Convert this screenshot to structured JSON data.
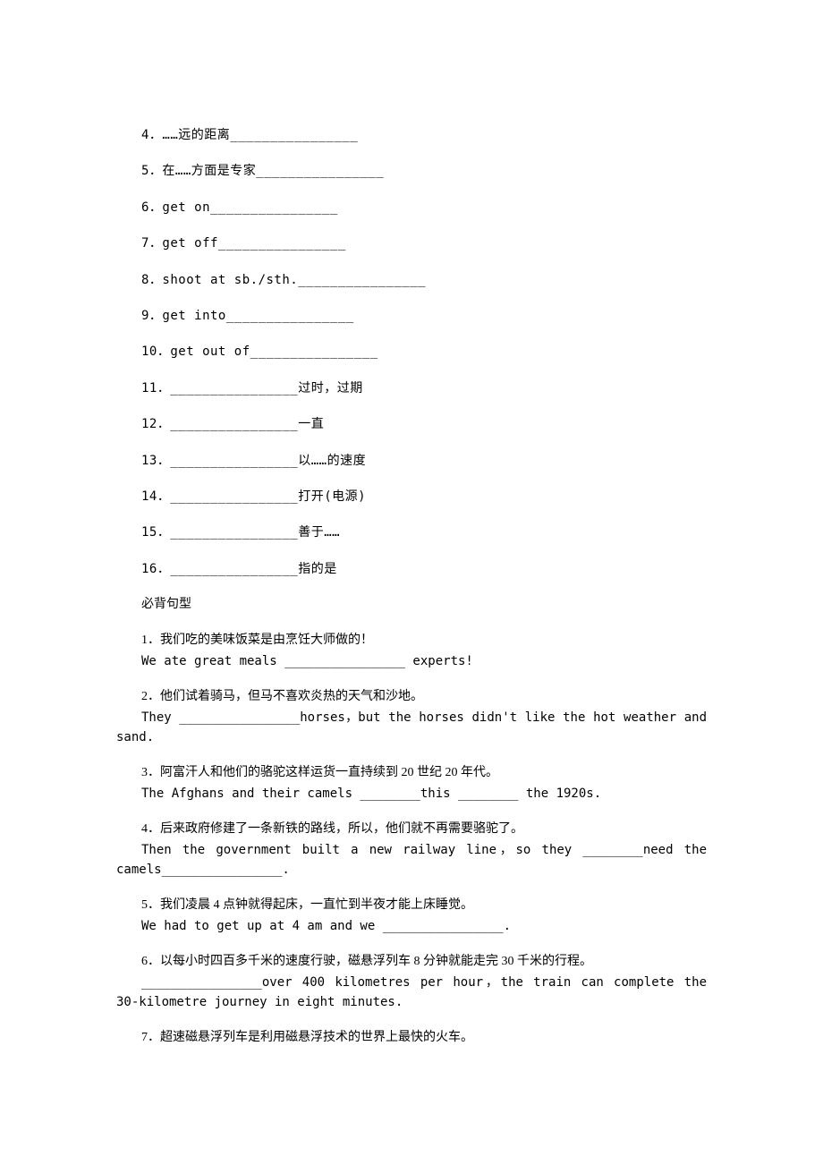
{
  "phrases": [
    {
      "num": "4",
      "text": "．……远的距离________________"
    },
    {
      "num": "5",
      "text": "．在……方面是专家________________"
    },
    {
      "num": "6",
      "text": "．get on________________"
    },
    {
      "num": "7",
      "text": "．get off________________"
    },
    {
      "num": "8",
      "text": "．shoot at sb./sth.________________"
    },
    {
      "num": "9",
      "text": "．get into________________"
    },
    {
      "num": "10",
      "text": "．get out of________________"
    },
    {
      "num": "11",
      "text": "．________________过时，过期"
    },
    {
      "num": "12",
      "text": "．________________一直"
    },
    {
      "num": "13",
      "text": "．________________以……的速度"
    },
    {
      "num": "14",
      "text": "．________________打开(电源)"
    },
    {
      "num": "15",
      "text": "．________________善于……"
    },
    {
      "num": "16",
      "text": "．________________指的是"
    }
  ],
  "section_header": "必背句型",
  "sentences": [
    {
      "num": "1",
      "cn": "．我们吃的美味饭菜是由烹饪大师做的！",
      "en_lines": [
        "We ate great meals ________________ experts!"
      ],
      "justify": [
        false
      ]
    },
    {
      "num": "2",
      "cn": "．他们试着骑马，但马不喜欢炎热的天气和沙地。",
      "en_lines": [
        "They ________________horses，but the horses didn't like the hot weather and",
        "sand."
      ],
      "justify": [
        true,
        false
      ]
    },
    {
      "num": "3",
      "cn": "．阿富汗人和他们的骆驼这样运货一直持续到 20 世纪 20 年代。",
      "en_lines": [
        "The Afghans and their camels ________this ________ the 1920s."
      ],
      "justify": [
        false
      ]
    },
    {
      "num": "4",
      "cn": "．后来政府修建了一条新铁的路线，所以，他们就不再需要骆驼了。",
      "en_lines": [
        "Then the government built a new railway line，so they ________need the",
        "camels________________."
      ],
      "justify": [
        true,
        false
      ]
    },
    {
      "num": "5",
      "cn": "．我们凌晨 4 点钟就得起床，一直忙到半夜才能上床睡觉。",
      "en_lines": [
        "We had to get up at 4 am and we ________________."
      ],
      "justify": [
        false
      ]
    },
    {
      "num": "6",
      "cn": "．以每小时四百多千米的速度行驶，磁悬浮列车 8 分钟就能走完 30 千米的行程。",
      "en_lines": [
        "________________over 400 kilometres per hour，the train can complete the",
        "30-kilometre journey in eight minutes."
      ],
      "justify": [
        true,
        false
      ]
    },
    {
      "num": "7",
      "cn": "．超速磁悬浮列车是利用磁悬浮技术的世界上最快的火车。",
      "en_lines": [],
      "justify": []
    }
  ]
}
